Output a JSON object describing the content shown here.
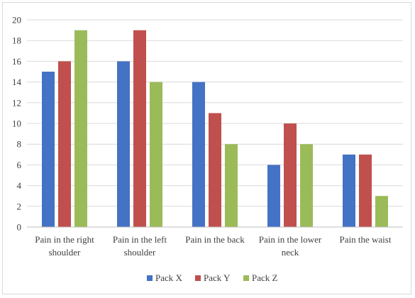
{
  "chart_data": {
    "type": "bar",
    "title": "",
    "xlabel": "",
    "ylabel": "",
    "ylim": [
      0,
      20
    ],
    "yticks": [
      0,
      2,
      4,
      6,
      8,
      10,
      12,
      14,
      16,
      18,
      20
    ],
    "grid": "horizontal",
    "legend_position": "bottom",
    "categories": [
      [
        "Pain in the right",
        "shoulder"
      ],
      [
        "Pain in the left",
        "shoulder"
      ],
      [
        "Pain in the back"
      ],
      [
        "Pain in the lower",
        "neck"
      ],
      [
        "Pain the waist"
      ]
    ],
    "series": [
      {
        "name": "Pack X",
        "color": "#4472c4",
        "values": [
          15,
          16,
          14,
          6,
          7
        ]
      },
      {
        "name": "Pack Y",
        "color": "#c0504d",
        "values": [
          16,
          19,
          11,
          10,
          7
        ]
      },
      {
        "name": "Pack Z",
        "color": "#9bbb59",
        "values": [
          19,
          14,
          8,
          8,
          3
        ]
      }
    ]
  }
}
